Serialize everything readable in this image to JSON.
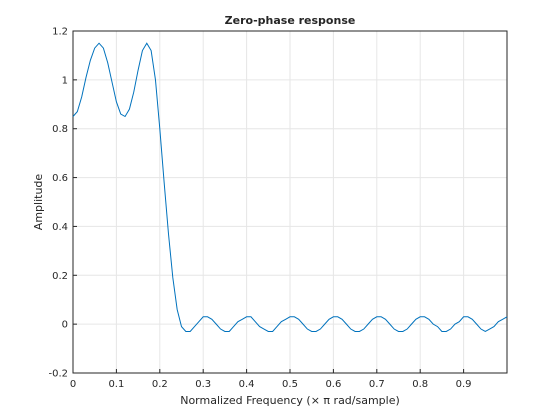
{
  "chart_data": {
    "type": "line",
    "title": "Zero-phase response",
    "x_label": "Normalized Frequency (× π rad/sample)",
    "y_label": "Amplitude",
    "x": [
      0,
      0.01,
      0.02,
      0.03,
      0.04,
      0.05,
      0.06,
      0.07,
      0.08,
      0.09,
      0.1,
      0.11,
      0.12,
      0.13,
      0.14,
      0.15,
      0.16,
      0.17,
      0.18,
      0.19,
      0.2,
      0.21,
      0.22,
      0.23,
      0.24,
      0.25,
      0.26,
      0.27,
      0.28,
      0.29,
      0.3,
      0.31,
      0.32,
      0.33,
      0.34,
      0.35,
      0.36,
      0.37,
      0.38,
      0.39,
      0.4,
      0.41,
      0.42,
      0.43,
      0.44,
      0.45,
      0.46,
      0.47,
      0.48,
      0.49,
      0.5,
      0.51,
      0.52,
      0.53,
      0.54,
      0.55,
      0.56,
      0.57,
      0.58,
      0.59,
      0.6,
      0.61,
      0.62,
      0.63,
      0.64,
      0.65,
      0.66,
      0.67,
      0.68,
      0.69,
      0.7,
      0.71,
      0.72,
      0.73,
      0.74,
      0.75,
      0.76,
      0.77,
      0.78,
      0.79,
      0.8,
      0.81,
      0.82,
      0.83,
      0.84,
      0.85,
      0.86,
      0.87,
      0.88,
      0.89,
      0.9,
      0.91,
      0.92,
      0.93,
      0.94,
      0.95,
      0.96,
      0.97,
      0.98,
      0.99,
      1
    ],
    "values": [
      0.85,
      0.87,
      0.93,
      1.01,
      1.08,
      1.13,
      1.15,
      1.13,
      1.07,
      0.99,
      0.91,
      0.86,
      0.85,
      0.88,
      0.95,
      1.04,
      1.12,
      1.15,
      1.12,
      1.0,
      0.8,
      0.58,
      0.37,
      0.19,
      0.06,
      -0.01,
      -0.03,
      -0.03,
      -0.01,
      0.01,
      0.03,
      0.03,
      0.02,
      0,
      -0.02,
      -0.03,
      -0.03,
      -0.01,
      0.01,
      0.02,
      0.03,
      0.03,
      0.01,
      -0.01,
      -0.02,
      -0.03,
      -0.03,
      -0.01,
      0.01,
      0.02,
      0.03,
      0.03,
      0.02,
      0,
      -0.02,
      -0.03,
      -0.03,
      -0.02,
      0,
      0.02,
      0.03,
      0.03,
      0.02,
      0,
      -0.02,
      -0.03,
      -0.03,
      -0.02,
      0,
      0.02,
      0.03,
      0.03,
      0.02,
      0,
      -0.02,
      -0.03,
      -0.03,
      -0.02,
      0,
      0.02,
      0.03,
      0.03,
      0.02,
      0,
      -0.01,
      -0.03,
      -0.03,
      -0.02,
      0,
      0.01,
      0.03,
      0.03,
      0.02,
      0,
      -0.02,
      -0.03,
      -0.02,
      -0.01,
      0.01,
      0.02,
      0.03
    ],
    "color": "#0072bd",
    "xlim": [
      0,
      1
    ],
    "xticks": [
      0,
      0.1,
      0.2,
      0.3,
      0.4,
      0.5,
      0.6,
      0.7,
      0.8,
      0.9
    ],
    "ylim": [
      -0.2,
      1.2
    ],
    "yticks": [
      -0.2,
      0,
      0.2,
      0.4,
      0.6,
      0.8,
      1,
      1.2
    ],
    "grid": true
  }
}
